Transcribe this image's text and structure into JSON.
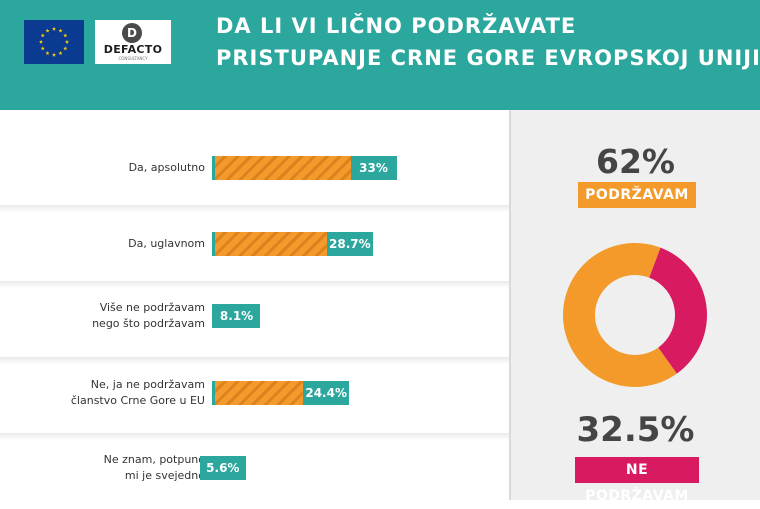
{
  "header": {
    "title_line1": "DA LI VI LIČNO PODRŽAVATE",
    "title_line2": "PRISTUPANJE CRNE GORE EVROPSKOJ UNIJI?",
    "logo_text": "DEFACTO",
    "logo_sub": "CONSULTANCY",
    "logo_mark": "D"
  },
  "colors": {
    "teal": "#2ba79e",
    "orange": "#f39a2a",
    "pink": "#d81b60",
    "background_right": "#efefef",
    "eu_blue": "#0b3a91",
    "eu_stars": "#ffcc00"
  },
  "icons": [
    "eu-flag-icon",
    "defacto-logo-icon"
  ],
  "chart_data": [
    {
      "type": "bar",
      "orientation": "horizontal",
      "categories": [
        [
          "Da, apsolutno"
        ],
        [
          "Da, uglavnom"
        ],
        [
          "Više ne podržavam",
          "nego što podržavam"
        ],
        [
          "Ne, ja ne podržavam",
          "članstvo Crne Gore u EU"
        ],
        [
          "Ne znam, potpuno",
          "mi je svejedno"
        ]
      ],
      "values": [
        33,
        28.7,
        8.1,
        24.4,
        5.6
      ],
      "value_labels": [
        "33%",
        "28.7%",
        "8.1%",
        "24.4%",
        "5.6%"
      ],
      "unit": "%",
      "bar_color": "#f39a2a",
      "label_color": "#2ba79e",
      "bar_pattern": "diagonal-stripes"
    },
    {
      "type": "pie",
      "style": "donut",
      "slices": [
        {
          "label": "PODRŽAVAM",
          "value": 62,
          "display": "62%",
          "color": "#f39a2a"
        },
        {
          "label": "NE PODRŽAVAM",
          "value": 32.5,
          "display": "32.5%",
          "color": "#d81b60"
        }
      ]
    }
  ]
}
